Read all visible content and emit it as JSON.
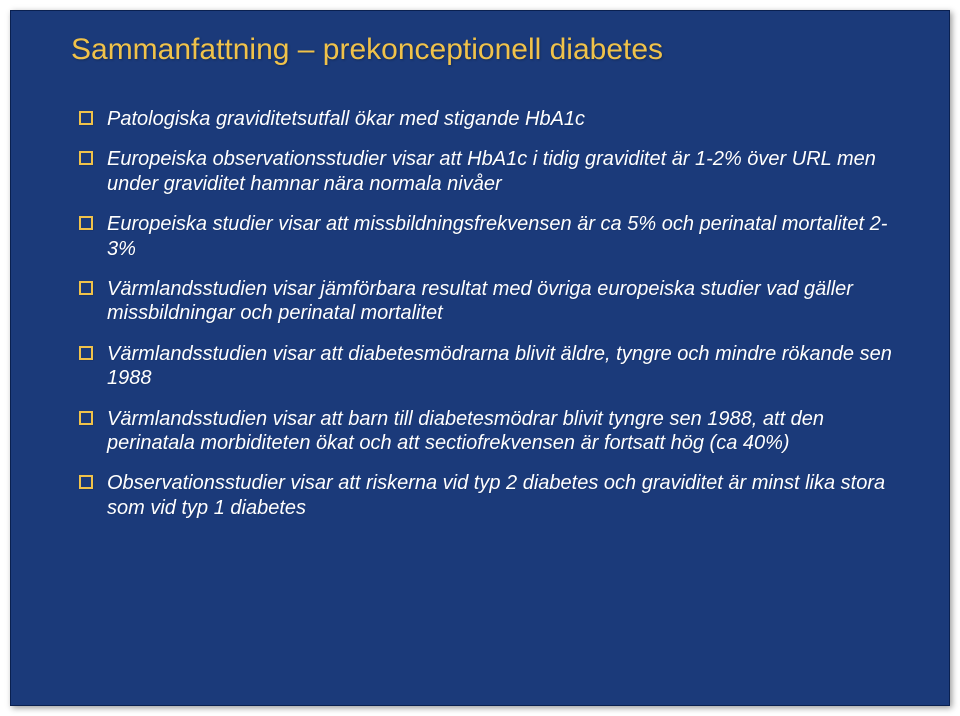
{
  "slide": {
    "background_color": "#ffffff",
    "content_background_color": "#1b3a7a",
    "title_color": "#f0c24a",
    "body_text_color": "#ffffff",
    "bullet_border_color": "#f0c24a",
    "title_fontsize": 30,
    "body_fontsize": 20,
    "title": "Sammanfattning – prekonceptionell diabetes",
    "bullets": [
      "Patologiska graviditetsutfall ökar med stigande HbA1c",
      "Europeiska observationsstudier visar att HbA1c i tidig graviditet är 1-2% över URL men under graviditet hamnar nära normala nivåer",
      "Europeiska studier visar att missbildningsfrekvensen är ca 5% och perinatal mortalitet 2-3%",
      "Värmlandsstudien visar jämförbara resultat med övriga europeiska studier vad gäller missbildningar och perinatal mortalitet",
      "Värmlandsstudien visar att diabetesmödrarna blivit äldre, tyngre och mindre rökande sen 1988",
      "Värmlandsstudien visar att barn till diabetesmödrar blivit tyngre sen 1988, att den perinatala morbiditeten ökat och att sectiofrekvensen är fortsatt hög (ca 40%)",
      "Observationsstudier visar att riskerna vid typ 2 diabetes och graviditet är minst lika stora som vid typ 1 diabetes"
    ]
  }
}
